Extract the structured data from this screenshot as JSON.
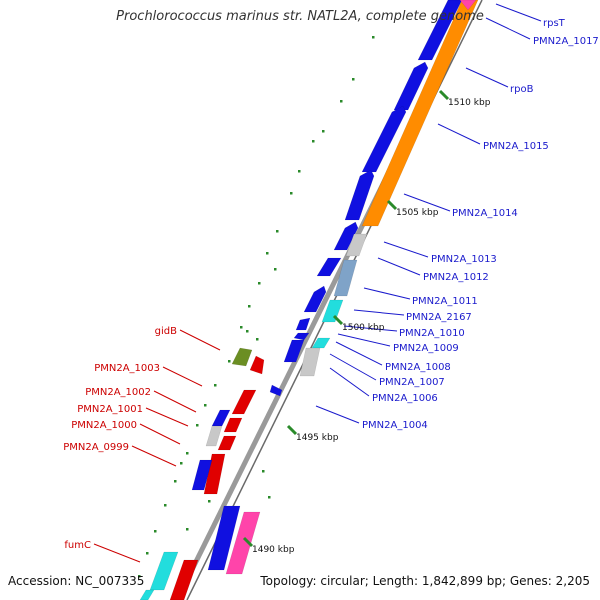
{
  "title": "Prochlorococcus marinus str. NATL2A, complete genome",
  "footer": {
    "accession": "Accession: NC_007335",
    "summary": "Topology: circular; Length: 1,842,899 bp; Genes: 2,205"
  },
  "colors": {
    "backbone": "#9a9a9a",
    "plus_cds": "#1010e0",
    "plus_rna": "#ff8c00",
    "plus_label": "#1a1acc",
    "minus_cds": "#e00000",
    "minus_rna": "#ff44aa",
    "minus_label": "#cc0000",
    "pseudo": "#c8c8c8",
    "trna": "#22dddd",
    "olive": "#6b8e23",
    "tick": "#2a8a2a"
  },
  "ticks": [
    "1510 kbp",
    "1505 kbp",
    "1500 kbp",
    "1495 kbp",
    "1490 kbp"
  ],
  "plus_strand_labels": [
    "rpsT",
    "PMN2A_1017",
    "rpoB",
    "PMN2A_1015",
    "PMN2A_1014",
    "PMN2A_1013",
    "PMN2A_1012",
    "PMN2A_1011",
    "PMN2A_2167",
    "PMN2A_1010",
    "PMN2A_1009",
    "PMN2A_1008",
    "PMN2A_1007",
    "PMN2A_1006",
    "PMN2A_1004"
  ],
  "minus_strand_labels": [
    "gidB",
    "PMN2A_1003",
    "PMN2A_1002",
    "PMN2A_1001",
    "PMN2A_1000",
    "PMN2A_0999",
    "fumC"
  ]
}
